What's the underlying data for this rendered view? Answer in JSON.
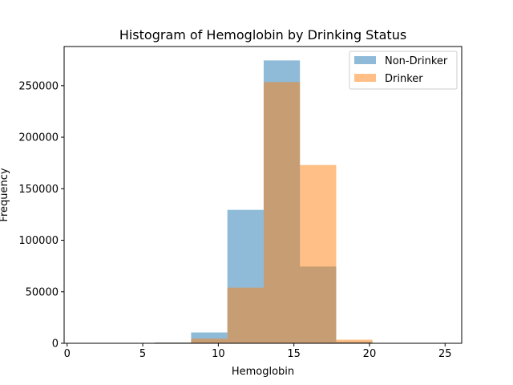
{
  "chart_data": {
    "type": "bar",
    "title": "Histogram of Hemoglobin by Drinking Status",
    "xlabel": "Hemoglobin",
    "ylabel": "Frequency",
    "xlim": [
      -0.2,
      26.1
    ],
    "ylim": [
      0,
      288000
    ],
    "xticks": [
      0,
      5,
      10,
      15,
      20,
      25
    ],
    "yticks": [
      0,
      50000,
      100000,
      150000,
      200000,
      250000
    ],
    "bin_edges": [
      1.0,
      3.4,
      5.8,
      8.2,
      10.6,
      13.0,
      15.4,
      17.8,
      20.2,
      22.6,
      25.0
    ],
    "legend": "top-right",
    "grid": false,
    "series": [
      {
        "name": "Non-Drinker",
        "color": "#1f77b4",
        "alpha": 0.5,
        "values": [
          0,
          0,
          800,
          10500,
          129500,
          274500,
          74500,
          1500,
          0,
          0
        ]
      },
      {
        "name": "Drinker",
        "color": "#ff7f0e",
        "alpha": 0.5,
        "values": [
          0,
          0,
          600,
          4500,
          54000,
          253500,
          173000,
          3500,
          0,
          0
        ]
      }
    ]
  }
}
